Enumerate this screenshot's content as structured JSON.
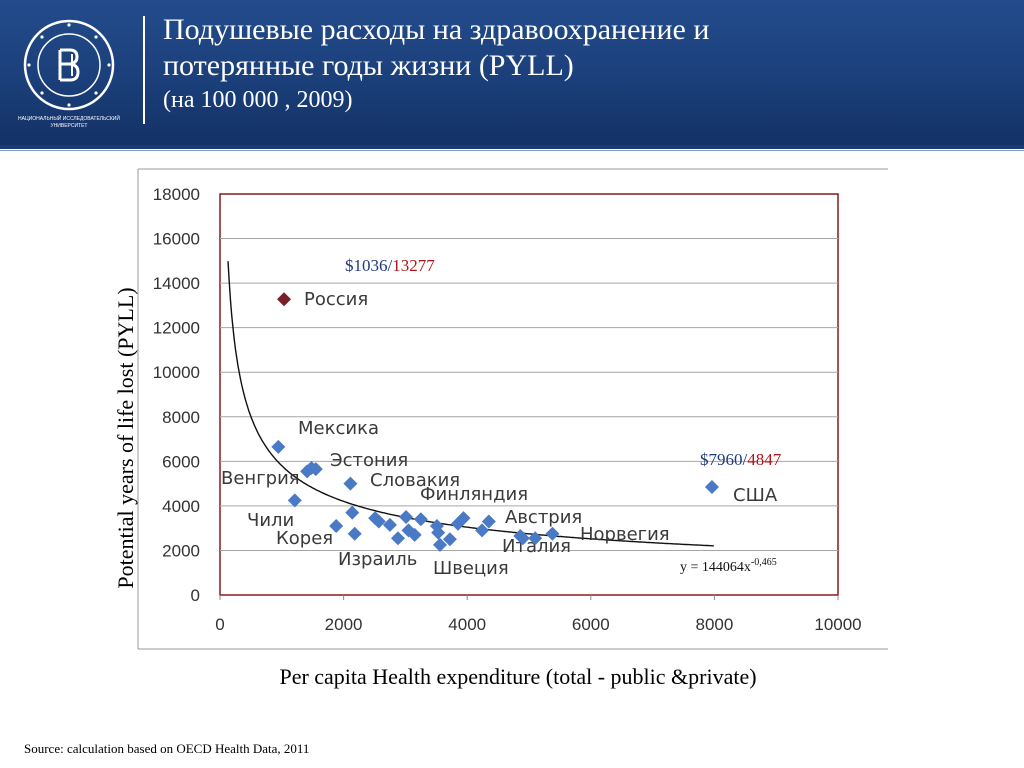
{
  "header": {
    "title_line1": "Подушевые расходы на здравоохранение и",
    "title_line2": "потерянные годы жизни (PYLL)",
    "subtitle": "(на 100 000 , 2009)",
    "logo_caption_line1": "НАЦИОНАЛЬНЫЙ ИССЛЕДОВАТЕЛЬСКИЙ",
    "logo_caption_line2": "УНИВЕРСИТЕТ"
  },
  "colors": {
    "header_bg": "#1b3f7a",
    "diamond": "#4a7ac6",
    "russia": "#7a1f28",
    "callout_blue": "#1f3a7a",
    "callout_red": "#b0151c",
    "frame": "#8b1a1a"
  },
  "chart_data": {
    "type": "scatter",
    "xlabel": "Per capita Health expenditure (total  - public &private)",
    "ylabel": "Potential years of life lost (PYLL)",
    "xlim": [
      0,
      10000
    ],
    "ylim": [
      0,
      18000
    ],
    "xticks": [
      "0",
      "2000",
      "4000",
      "6000",
      "8000",
      "10000"
    ],
    "yticks": [
      "0",
      "2000",
      "4000",
      "6000",
      "8000",
      "10000",
      "12000",
      "14000",
      "16000",
      "18000"
    ],
    "grid": "horizontal",
    "series": [
      {
        "marker": "diamond",
        "points": [
          {
            "x": 1036,
            "y": 13277,
            "label": "Россия",
            "highlight": true
          },
          {
            "x": 944,
            "y": 6650,
            "label": "Мексика"
          },
          {
            "x": 1480,
            "y": 5700,
            "label": "Эстония"
          },
          {
            "x": 1410,
            "y": 5550
          },
          {
            "x": 1550,
            "y": 5650
          },
          {
            "x": 1210,
            "y": 4250,
            "label": "Венгрия"
          },
          {
            "x": 2110,
            "y": 5000,
            "label": "Словакия"
          },
          {
            "x": 2140,
            "y": 3700,
            "label": "Чили"
          },
          {
            "x": 1880,
            "y": 3100,
            "label": "Корея"
          },
          {
            "x": 2180,
            "y": 2750
          },
          {
            "x": 2510,
            "y": 3450
          },
          {
            "x": 2570,
            "y": 3300
          },
          {
            "x": 2750,
            "y": 3150
          },
          {
            "x": 2880,
            "y": 2550,
            "label": "Израиль"
          },
          {
            "x": 3010,
            "y": 3500
          },
          {
            "x": 3050,
            "y": 2900
          },
          {
            "x": 3150,
            "y": 2700
          },
          {
            "x": 3250,
            "y": 3400
          },
          {
            "x": 3510,
            "y": 3100
          },
          {
            "x": 3530,
            "y": 2800
          },
          {
            "x": 3560,
            "y": 2250,
            "label": "Швеция"
          },
          {
            "x": 3720,
            "y": 2500
          },
          {
            "x": 3850,
            "y": 3200
          },
          {
            "x": 3940,
            "y": 3450
          },
          {
            "x": 4240,
            "y": 2900
          },
          {
            "x": 4350,
            "y": 3300,
            "label": "Финляндия"
          },
          {
            "x": 4860,
            "y": 2650,
            "label": "Италия"
          },
          {
            "x": 4900,
            "y": 2550
          },
          {
            "x": 5100,
            "y": 2550,
            "label": "Австрия"
          },
          {
            "x": 5380,
            "y": 2750,
            "label": "Норвегия"
          },
          {
            "x": 7960,
            "y": 4847,
            "label": "США"
          }
        ]
      }
    ],
    "trendline": {
      "type": "power",
      "a": 144064,
      "b": -0.465,
      "equation": "y = 144064x",
      "exponent": "-0,465"
    },
    "annotations": [
      {
        "dollar": "$1036/",
        "value": "13277"
      },
      {
        "dollar": "$7960/",
        "value": "4847"
      }
    ]
  },
  "source": "Source: calculation based on OECD Health Data, 2011"
}
